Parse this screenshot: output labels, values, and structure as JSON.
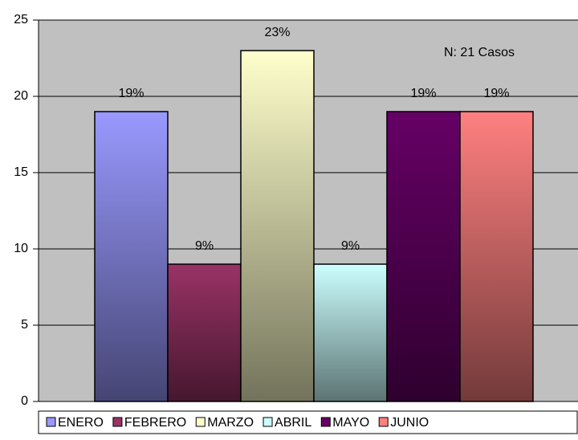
{
  "chart_data": {
    "type": "bar",
    "annotation": "N: 21 Casos",
    "series": [
      {
        "name": "ENERO",
        "color": "#9999ff",
        "values": [
          19
        ],
        "value_labels": [
          "19%"
        ]
      },
      {
        "name": "FEBRERO",
        "color": "#993366",
        "values": [
          9
        ],
        "value_labels": [
          "9%"
        ]
      },
      {
        "name": "MARZO",
        "color": "#ffffcc",
        "values": [
          23
        ],
        "value_labels": [
          "23%"
        ]
      },
      {
        "name": "ABRIL",
        "color": "#ccffff",
        "values": [
          9
        ],
        "value_labels": [
          "9%"
        ]
      },
      {
        "name": "MAYO",
        "color": "#660066",
        "values": [
          19
        ],
        "value_labels": [
          "19%"
        ]
      },
      {
        "name": "JUNIO",
        "color": "#ff8080",
        "values": [
          19
        ],
        "value_labels": [
          "19%"
        ]
      }
    ],
    "ylim": [
      0,
      25
    ],
    "yticks": [
      0,
      5,
      10,
      15,
      20,
      25
    ],
    "grid": true,
    "legend": "bottom"
  }
}
